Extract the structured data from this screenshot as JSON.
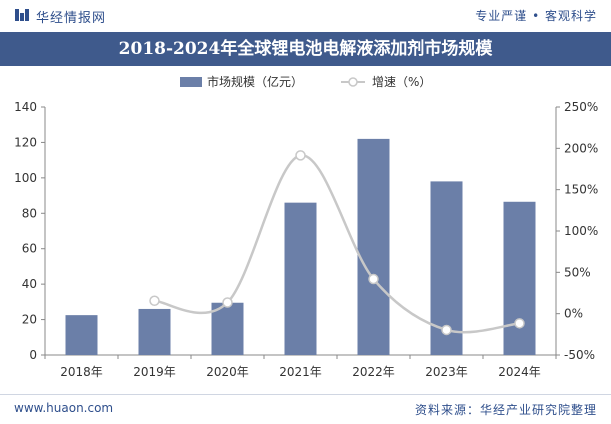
{
  "header": {
    "logo_text": "华经情报网",
    "slogan": "专业严谨 • 客观科学"
  },
  "footer": {
    "website": "www.huaon.com",
    "source": "资料来源：华经产业研究院整理"
  },
  "colors": {
    "bar": "#6b7fa8",
    "line": "#c8c8c8",
    "title_bg": "#3f5a8c",
    "brand_text": "#2f4f8c"
  },
  "chart_data": {
    "type": "bar",
    "title": "2018-2024年全球锂电池电解液添加剂市场规模",
    "categories": [
      "2018年",
      "2019年",
      "2020年",
      "2021年",
      "2022年",
      "2023年",
      "2024年"
    ],
    "series": [
      {
        "name": "市场规模（亿元）",
        "type": "bar",
        "axis": "left",
        "values": [
          22.5,
          26,
          29.5,
          86,
          122,
          98,
          86.5
        ]
      },
      {
        "name": "增速（%）",
        "type": "line",
        "axis": "right",
        "smooth": true,
        "values": [
          null,
          15.6,
          13.5,
          191.5,
          41.9,
          -19.7,
          -11.7
        ]
      }
    ],
    "left_axis": {
      "min": 0,
      "max": 140,
      "step": 20,
      "ticks": [
        "0",
        "20",
        "40",
        "60",
        "80",
        "100",
        "120",
        "140"
      ]
    },
    "right_axis": {
      "min": -50,
      "max": 250,
      "step": 50,
      "ticks": [
        "-50%",
        "0%",
        "50%",
        "100%",
        "150%",
        "200%",
        "250%"
      ]
    },
    "grid": false,
    "legend_position": "top-center"
  }
}
